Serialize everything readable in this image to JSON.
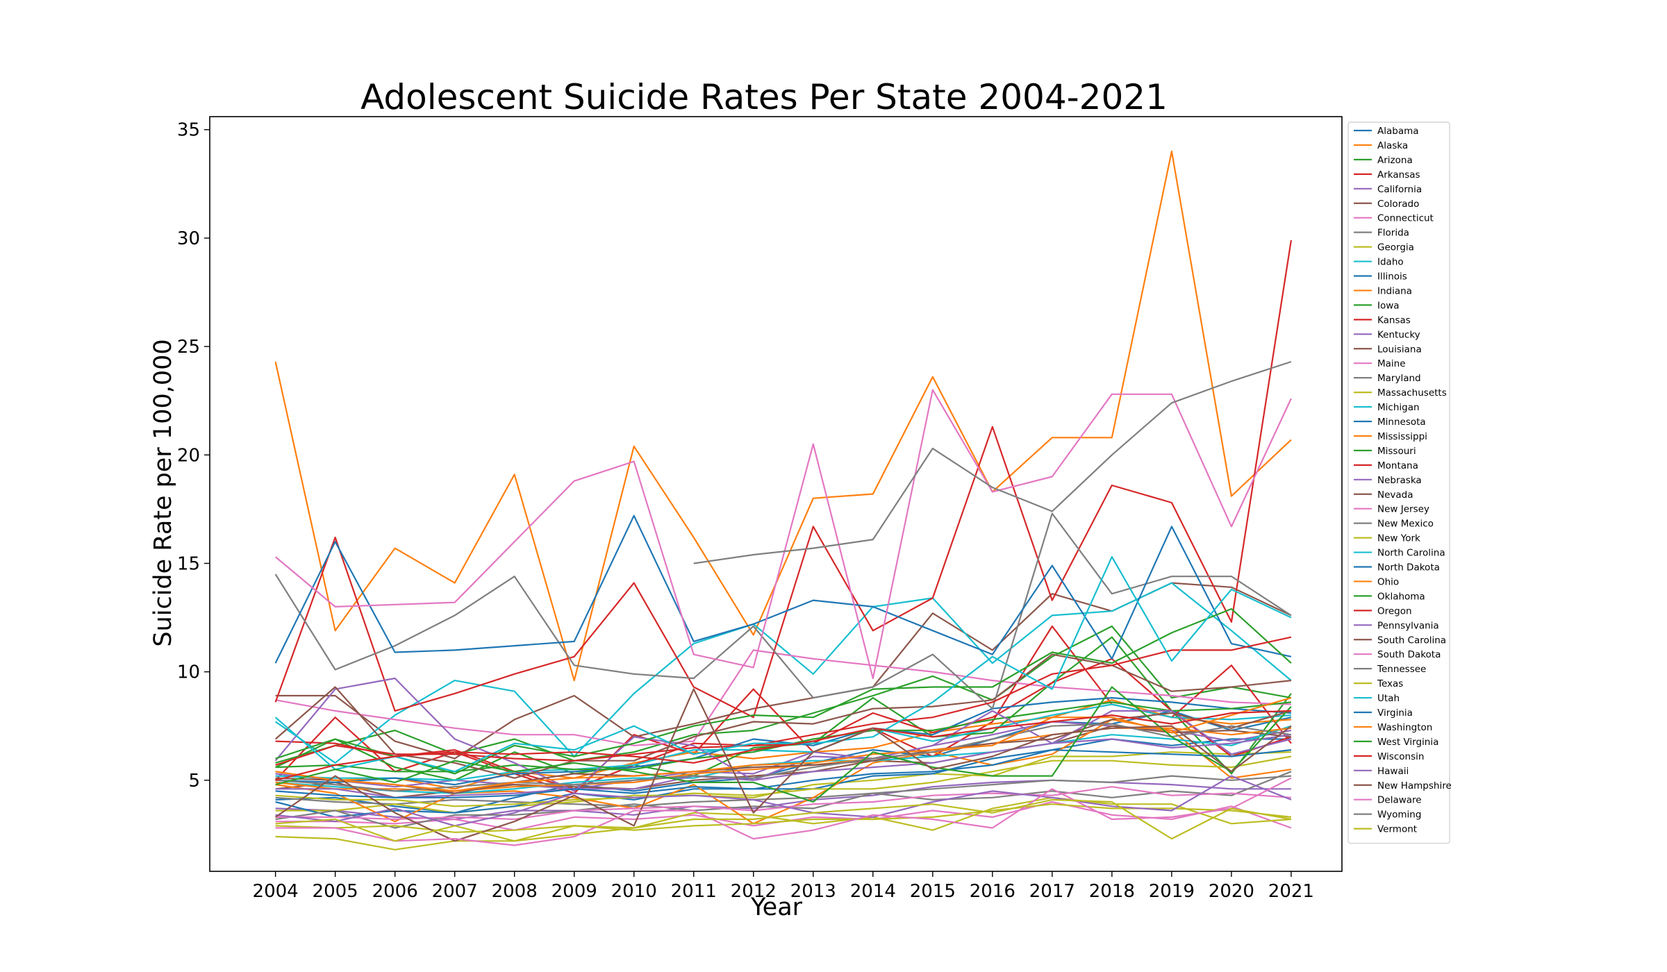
{
  "chart_data": {
    "type": "line",
    "title": "Adolescent Suicide Rates Per State 2004-2021",
    "xlabel": "Year",
    "ylabel": "Suicide Rate per 100,000",
    "x": [
      2004,
      2005,
      2006,
      2007,
      2008,
      2009,
      2010,
      2011,
      2012,
      2013,
      2014,
      2015,
      2016,
      2017,
      2018,
      2019,
      2020,
      2021
    ],
    "ylim": [
      0.8,
      35.6
    ],
    "yticks": [
      5,
      10,
      15,
      20,
      25,
      30,
      35
    ],
    "grid": false,
    "legend_position": "right, outside plot",
    "series": [
      {
        "name": "Alabama",
        "color": "#1f77b4",
        "values": [
          4.1,
          4.2,
          3.8,
          3.5,
          4.2,
          4.8,
          4.5,
          4.9,
          5.1,
          5.8,
          6.4,
          6.1,
          6.9,
          7.7,
          7.6,
          8.2,
          7.3,
          7.9
        ]
      },
      {
        "name": "Alaska",
        "color": "#ff7f0e",
        "values": [
          24.3,
          11.9,
          15.7,
          14.1,
          19.1,
          9.6,
          20.4,
          16.2,
          11.7,
          18.0,
          18.2,
          23.6,
          18.3,
          20.8,
          20.8,
          34.0,
          18.1,
          20.7
        ]
      },
      {
        "name": "Arizona",
        "color": "#2ca02c",
        "values": [
          5.8,
          6.6,
          7.3,
          6.2,
          6.9,
          5.9,
          6.3,
          7.1,
          7.3,
          8.1,
          8.9,
          9.8,
          8.7,
          10.7,
          12.1,
          8.8,
          9.3,
          8.8
        ]
      },
      {
        "name": "Arkansas",
        "color": "#d62728",
        "values": [
          5.0,
          7.9,
          5.4,
          6.3,
          5.3,
          4.4,
          7.1,
          6.2,
          9.2,
          6.3,
          7.4,
          6.1,
          7.7,
          12.1,
          8.5,
          7.9,
          10.3,
          6.7
        ]
      },
      {
        "name": "California",
        "color": "#9467bd",
        "values": [
          3.7,
          3.6,
          3.3,
          3.2,
          3.6,
          3.6,
          3.4,
          3.8,
          3.7,
          4.1,
          4.3,
          4.7,
          4.9,
          5.0,
          4.9,
          4.8,
          4.6,
          4.6
        ]
      },
      {
        "name": "Colorado",
        "color": "#8c564b",
        "values": [
          8.9,
          8.9,
          6.8,
          6.0,
          7.8,
          8.9,
          7.0,
          7.6,
          8.3,
          8.8,
          9.3,
          12.7,
          11.0,
          13.6,
          12.8,
          14.1,
          13.9,
          12.6
        ]
      },
      {
        "name": "Connecticut",
        "color": "#e377c2",
        "values": [
          3.1,
          3.1,
          3.0,
          3.2,
          2.7,
          3.3,
          3.2,
          3.4,
          2.9,
          3.3,
          3.2,
          3.6,
          3.3,
          4.0,
          3.4,
          3.2,
          3.8,
          2.8
        ]
      },
      {
        "name": "Florida",
        "color": "#7f7f7f",
        "values": [
          4.2,
          4.0,
          3.9,
          4.1,
          4.0,
          3.9,
          3.8,
          4.0,
          4.1,
          4.2,
          4.4,
          4.6,
          4.8,
          5.0,
          4.9,
          5.2,
          5.0,
          5.2
        ]
      },
      {
        "name": "Georgia",
        "color": "#bcbd22",
        "values": [
          3.6,
          3.6,
          3.9,
          3.5,
          3.8,
          4.0,
          4.3,
          4.3,
          4.2,
          4.8,
          5.0,
          5.3,
          5.2,
          6.1,
          6.1,
          6.3,
          6.2,
          6.3
        ]
      },
      {
        "name": "Idaho",
        "color": "#17becf",
        "values": [
          7.7,
          5.8,
          8.0,
          9.6,
          9.1,
          6.1,
          9.0,
          11.3,
          12.2,
          9.9,
          13.0,
          13.4,
          10.4,
          12.6,
          12.8,
          14.1,
          11.9,
          9.6
        ]
      },
      {
        "name": "Illinois",
        "color": "#1f77b4",
        "values": [
          4.0,
          3.3,
          3.6,
          3.5,
          3.8,
          4.4,
          4.1,
          4.6,
          4.6,
          4.6,
          5.2,
          5.3,
          6.0,
          6.4,
          6.9,
          6.6,
          6.9,
          6.9
        ]
      },
      {
        "name": "Indiana",
        "color": "#ff7f0e",
        "values": [
          5.4,
          5.0,
          5.1,
          4.6,
          5.4,
          5.1,
          5.8,
          6.3,
          6.0,
          6.3,
          6.5,
          7.2,
          7.6,
          7.9,
          8.7,
          7.9,
          7.6,
          7.8
        ]
      },
      {
        "name": "Iowa",
        "color": "#2ca02c",
        "values": [
          5.6,
          6.9,
          5.6,
          5.0,
          6.3,
          5.3,
          5.7,
          5.2,
          6.5,
          6.7,
          8.8,
          7.0,
          7.2,
          9.5,
          11.6,
          8.2,
          5.3,
          9.0
        ]
      },
      {
        "name": "Kansas",
        "color": "#d62728",
        "values": [
          6.8,
          6.7,
          6.1,
          6.4,
          5.4,
          4.6,
          5.7,
          6.7,
          6.6,
          6.7,
          8.1,
          7.2,
          7.9,
          9.5,
          10.6,
          8.2,
          6.1,
          7.0
        ]
      },
      {
        "name": "Kentucky",
        "color": "#9467bd",
        "values": [
          5.3,
          5.0,
          4.7,
          5.0,
          4.8,
          4.6,
          5.0,
          5.4,
          5.3,
          6.3,
          6.0,
          6.6,
          7.1,
          7.7,
          7.5,
          7.3,
          6.8,
          7.3
        ]
      },
      {
        "name": "Louisiana",
        "color": "#8c564b",
        "values": [
          4.6,
          4.9,
          4.2,
          4.5,
          4.8,
          4.7,
          4.6,
          5.0,
          5.2,
          5.4,
          5.9,
          5.8,
          6.3,
          6.7,
          7.5,
          7.2,
          7.3,
          7.0
        ]
      },
      {
        "name": "Maine",
        "color": "#e377c2",
        "values": [
          8.7,
          8.2,
          7.8,
          7.4,
          7.1,
          7.1,
          6.6,
          6.8,
          11.0,
          10.6,
          10.3,
          10.0,
          9.6,
          9.3,
          9.1,
          8.9,
          8.6,
          8.5
        ]
      },
      {
        "name": "Maryland",
        "color": "#7f7f7f",
        "values": [
          3.2,
          3.6,
          2.8,
          3.4,
          3.4,
          3.6,
          3.9,
          3.6,
          3.8,
          3.7,
          4.4,
          4.1,
          4.2,
          4.5,
          4.2,
          4.5,
          4.3,
          5.4
        ]
      },
      {
        "name": "Massachusetts",
        "color": "#bcbd22",
        "values": [
          2.4,
          2.3,
          1.8,
          2.2,
          2.2,
          2.5,
          2.8,
          3.5,
          3.4,
          3.0,
          3.3,
          2.7,
          3.7,
          4.2,
          3.9,
          3.9,
          3.0,
          3.2
        ]
      },
      {
        "name": "Michigan",
        "color": "#17becf",
        "values": [
          5.2,
          5.1,
          5.1,
          5.0,
          5.4,
          5.5,
          5.7,
          6.4,
          6.4,
          6.3,
          7.4,
          6.8,
          7.4,
          8.0,
          8.5,
          7.9,
          7.8,
          8.0
        ]
      },
      {
        "name": "Minnesota",
        "color": "#1f77b4",
        "values": [
          5.0,
          4.9,
          5.1,
          4.8,
          5.3,
          5.4,
          5.6,
          6.0,
          6.9,
          6.6,
          7.4,
          7.1,
          8.3,
          8.6,
          8.8,
          8.6,
          8.3,
          8.1
        ]
      },
      {
        "name": "Mississippi",
        "color": "#ff7f0e",
        "values": [
          4.8,
          4.4,
          3.1,
          4.4,
          4.5,
          4.2,
          3.7,
          4.8,
          3.0,
          4.2,
          5.8,
          6.3,
          5.7,
          6.2,
          7.8,
          7.3,
          5.1,
          5.5
        ]
      },
      {
        "name": "Missouri",
        "color": "#2ca02c",
        "values": [
          5.6,
          5.7,
          5.4,
          5.4,
          5.7,
          5.5,
          5.5,
          6.0,
          6.3,
          6.9,
          7.3,
          7.3,
          7.8,
          8.2,
          8.6,
          8.2,
          8.3,
          8.6
        ]
      },
      {
        "name": "Montana",
        "color": "#d62728",
        "values": [
          8.6,
          16.2,
          8.2,
          9.0,
          9.9,
          10.7,
          14.1,
          9.3,
          7.9,
          16.7,
          11.9,
          13.4,
          21.3,
          13.3,
          18.6,
          17.8,
          12.3,
          29.9
        ]
      },
      {
        "name": "Nebraska",
        "color": "#9467bd",
        "values": [
          5.9,
          9.2,
          9.7,
          6.9,
          5.8,
          4.5,
          7.0,
          6.6,
          5.0,
          6.1,
          6.0,
          6.6,
          8.2,
          6.7,
          8.2,
          8.2,
          6.2,
          6.9
        ]
      },
      {
        "name": "Nevada",
        "color": "#8c564b",
        "values": [
          6.9,
          9.3,
          6.2,
          5.8,
          5.1,
          5.9,
          5.9,
          7.0,
          7.7,
          7.6,
          8.3,
          8.4,
          8.7,
          10.8,
          10.3,
          9.1,
          9.3,
          9.6
        ]
      },
      {
        "name": "New Jersey",
        "color": "#e377c2",
        "values": [
          3.3,
          3.3,
          3.2,
          3.3,
          3.2,
          3.6,
          3.7,
          3.8,
          3.6,
          3.9,
          4.0,
          4.3,
          4.4,
          4.3,
          4.7,
          4.3,
          4.4,
          4.2
        ]
      },
      {
        "name": "New Mexico",
        "color": "#7f7f7f",
        "values": [
          14.5,
          10.1,
          11.2,
          12.6,
          14.4,
          10.3,
          9.9,
          9.7,
          12.1,
          8.8,
          9.3,
          10.8,
          8.3,
          17.3,
          13.6,
          14.4,
          14.4,
          12.6
        ]
      },
      {
        "name": "New York",
        "color": "#bcbd22",
        "values": [
          2.9,
          2.8,
          2.9,
          2.6,
          2.7,
          2.9,
          2.7,
          2.9,
          3.0,
          3.2,
          3.2,
          3.3,
          3.6,
          3.9,
          3.7,
          3.7,
          3.6,
          3.3
        ]
      },
      {
        "name": "North Carolina",
        "color": "#17becf",
        "values": [
          4.9,
          4.7,
          4.5,
          4.4,
          4.6,
          4.9,
          5.1,
          5.1,
          5.7,
          5.9,
          5.9,
          6.1,
          6.3,
          6.7,
          7.1,
          6.9,
          6.6,
          7.5
        ]
      },
      {
        "name": "North Dakota",
        "color": "#1f77b4",
        "values": [
          10.4,
          16.0,
          10.9,
          11.0,
          11.2,
          11.4,
          17.2,
          11.4,
          12.2,
          13.3,
          13.0,
          11.9,
          10.8,
          14.9,
          10.6,
          16.7,
          11.3,
          10.7
        ]
      },
      {
        "name": "Ohio",
        "color": "#ff7f0e",
        "values": [
          4.9,
          4.6,
          4.6,
          4.5,
          4.7,
          4.8,
          4.9,
          5.3,
          5.5,
          5.7,
          6.0,
          6.3,
          6.7,
          7.1,
          7.4,
          7.4,
          7.1,
          7.4
        ]
      },
      {
        "name": "Oklahoma",
        "color": "#2ca02c",
        "values": [
          6.0,
          6.9,
          6.1,
          5.3,
          6.6,
          6.1,
          6.7,
          7.5,
          8.0,
          7.9,
          9.2,
          9.3,
          9.3,
          10.9,
          10.4,
          11.8,
          12.9,
          10.4
        ]
      },
      {
        "name": "Oregon",
        "color": "#d62728",
        "values": [
          5.7,
          6.6,
          6.2,
          6.2,
          6.0,
          5.9,
          6.2,
          6.5,
          6.6,
          7.1,
          7.6,
          7.9,
          8.6,
          9.9,
          10.3,
          11.0,
          11.0,
          11.6
        ]
      },
      {
        "name": "Pennsylvania",
        "color": "#9467bd",
        "values": [
          4.6,
          4.6,
          4.2,
          4.3,
          4.4,
          4.6,
          4.6,
          5.2,
          5.0,
          5.4,
          5.6,
          5.8,
          6.3,
          6.7,
          6.9,
          6.5,
          6.7,
          7.1
        ]
      },
      {
        "name": "South Carolina",
        "color": "#8c564b",
        "values": [
          5.1,
          5.0,
          4.8,
          4.4,
          4.9,
          5.3,
          5.2,
          5.4,
          5.6,
          5.7,
          5.9,
          6.4,
          6.7,
          6.9,
          7.8,
          8.1,
          7.4,
          8.2
        ]
      },
      {
        "name": "South Dakota",
        "color": "#e377c2",
        "values": [
          15.3,
          13.0,
          13.1,
          13.2,
          16.0,
          18.8,
          19.7,
          10.8,
          10.2,
          20.5,
          9.7,
          23.0,
          18.3,
          19.0,
          22.8,
          22.8,
          16.7,
          22.6
        ]
      },
      {
        "name": "Tennessee",
        "color": "#7f7f7f",
        "values": [
          5.0,
          4.8,
          4.5,
          4.7,
          4.9,
          4.8,
          5.0,
          5.2,
          5.1,
          5.6,
          6.0,
          6.3,
          6.9,
          7.5,
          7.6,
          7.0,
          7.5,
          7.1
        ]
      },
      {
        "name": "Texas",
        "color": "#bcbd22",
        "values": [
          4.3,
          4.1,
          4.1,
          3.8,
          3.9,
          4.1,
          4.2,
          4.4,
          4.3,
          4.6,
          4.6,
          4.9,
          5.4,
          5.9,
          5.9,
          5.7,
          5.6,
          6.1
        ]
      },
      {
        "name": "Utah",
        "color": "#17becf",
        "values": [
          7.9,
          5.5,
          6.1,
          5.4,
          6.7,
          6.4,
          7.5,
          6.2,
          6.7,
          6.7,
          7.0,
          8.6,
          10.7,
          9.2,
          15.3,
          10.5,
          13.8,
          12.5
        ]
      },
      {
        "name": "Virginia",
        "color": "#1f77b4",
        "values": [
          4.5,
          4.3,
          4.2,
          4.2,
          4.3,
          4.6,
          4.4,
          4.7,
          4.6,
          5.0,
          5.3,
          5.4,
          5.7,
          6.4,
          6.3,
          6.2,
          6.1,
          6.4
        ]
      },
      {
        "name": "Washington",
        "color": "#ff7f0e",
        "values": [
          5.4,
          5.0,
          4.8,
          4.5,
          4.9,
          5.1,
          5.2,
          5.4,
          5.7,
          5.8,
          6.2,
          6.4,
          6.6,
          7.9,
          7.9,
          7.2,
          8.0,
          8.8
        ]
      },
      {
        "name": "West Virginia",
        "color": "#2ca02c",
        "values": [
          4.8,
          5.5,
          4.9,
          5.9,
          5.4,
          5.8,
          5.4,
          4.9,
          4.9,
          4.0,
          6.3,
          5.6,
          5.2,
          5.2,
          9.3,
          7.0,
          5.4,
          8.4
        ]
      },
      {
        "name": "Wisconsin",
        "color": "#d62728",
        "values": [
          5.0,
          5.7,
          6.1,
          6.3,
          6.2,
          6.3,
          6.1,
          5.8,
          6.4,
          6.8,
          7.4,
          7.0,
          7.4,
          7.7,
          8.0,
          7.6,
          8.1,
          8.2
        ]
      },
      {
        "name": "Hawaii",
        "color": "#9467bd",
        "values": [
          3.4,
          3.1,
          3.7,
          2.9,
          3.5,
          4.4,
          4.2,
          4.3,
          4.1,
          3.5,
          3.3,
          4.0,
          4.5,
          4.2,
          3.8,
          3.6,
          5.2,
          4.1
        ]
      },
      {
        "name": "New Hampshire",
        "color": "#8c564b",
        "values": [
          3.3,
          5.2,
          3.5,
          2.2,
          3.1,
          4.3,
          2.9,
          9.2,
          3.5,
          6.3,
          7.4,
          5.5,
          6.1,
          7.1,
          7.4,
          7.5,
          5.4,
          7.5
        ]
      },
      {
        "name": "Delaware",
        "color": "#e377c2",
        "values": [
          2.8,
          2.8,
          2.2,
          2.3,
          2.0,
          2.4,
          3.6,
          3.6,
          2.3,
          2.7,
          3.4,
          3.2,
          2.8,
          4.6,
          3.2,
          3.3,
          3.7,
          5.1
        ]
      },
      {
        "name": "Wyoming",
        "color": "#7f7f7f",
        "values": [
          null,
          null,
          null,
          null,
          null,
          null,
          null,
          15.0,
          15.4,
          15.7,
          16.1,
          20.3,
          18.5,
          17.4,
          20.0,
          22.4,
          23.4,
          24.3
        ]
      },
      {
        "name": "Vermont",
        "color": "#bcbd22",
        "values": [
          3.0,
          3.2,
          2.2,
          2.9,
          2.2,
          2.9,
          2.8,
          3.2,
          3.2,
          3.5,
          3.7,
          3.9,
          3.5,
          4.1,
          4.0,
          2.3,
          3.7,
          3.2
        ]
      }
    ]
  }
}
